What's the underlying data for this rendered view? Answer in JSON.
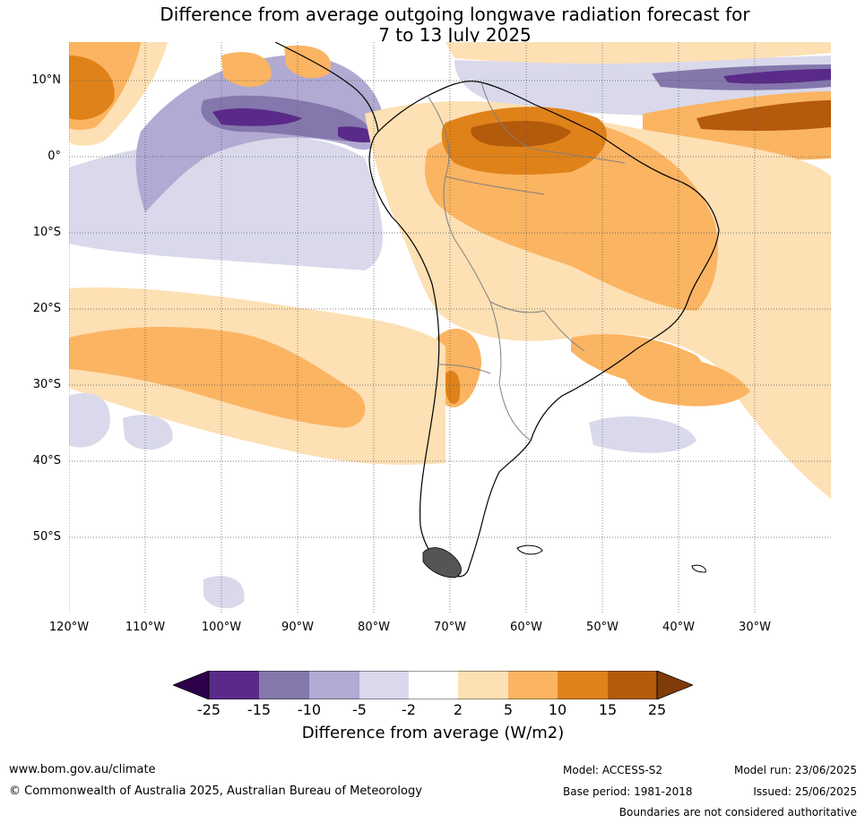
{
  "title": {
    "line1": "Difference from average outgoing longwave radiation forecast for",
    "line2": "7 to 13 July 2025"
  },
  "map": {
    "lat_labels": [
      "10°N",
      "0°",
      "10°S",
      "20°S",
      "30°S",
      "40°S",
      "50°S"
    ],
    "lon_labels": [
      "120°W",
      "110°W",
      "100°W",
      "90°W",
      "80°W",
      "70°W",
      "60°W",
      "50°W",
      "40°W",
      "30°W"
    ],
    "colors": {
      "strong_neg": "#5a2a8a",
      "neg15": "#8477ac",
      "neg10": "#b1aad2",
      "neg5": "#d9d9eb",
      "neutral": "#ffffff",
      "pos2": "#fde0b4",
      "pos5": "#fbb462",
      "pos10": "#e0821a",
      "pos15": "#b45a0b",
      "strong_pos": "#7f3b08",
      "coast": "#000000",
      "border": "#808080"
    }
  },
  "colorbar": {
    "ticks": [
      "-25",
      "-15",
      "-10",
      "-5",
      "-2",
      "2",
      "5",
      "10",
      "15",
      "25"
    ],
    "label": "Difference from average (W/m2)"
  },
  "footer": {
    "website": "www.bom.gov.au/climate",
    "copyright": "© Commonwealth of Australia 2025, Australian Bureau of Meteorology",
    "model": "Model: ACCESS-S2",
    "base_period": "Base period: 1981-2018",
    "model_run": "Model run: 23/06/2025",
    "issued": "Issued: 25/06/2025",
    "disclaimer": "Boundaries are not considered authoritative"
  }
}
